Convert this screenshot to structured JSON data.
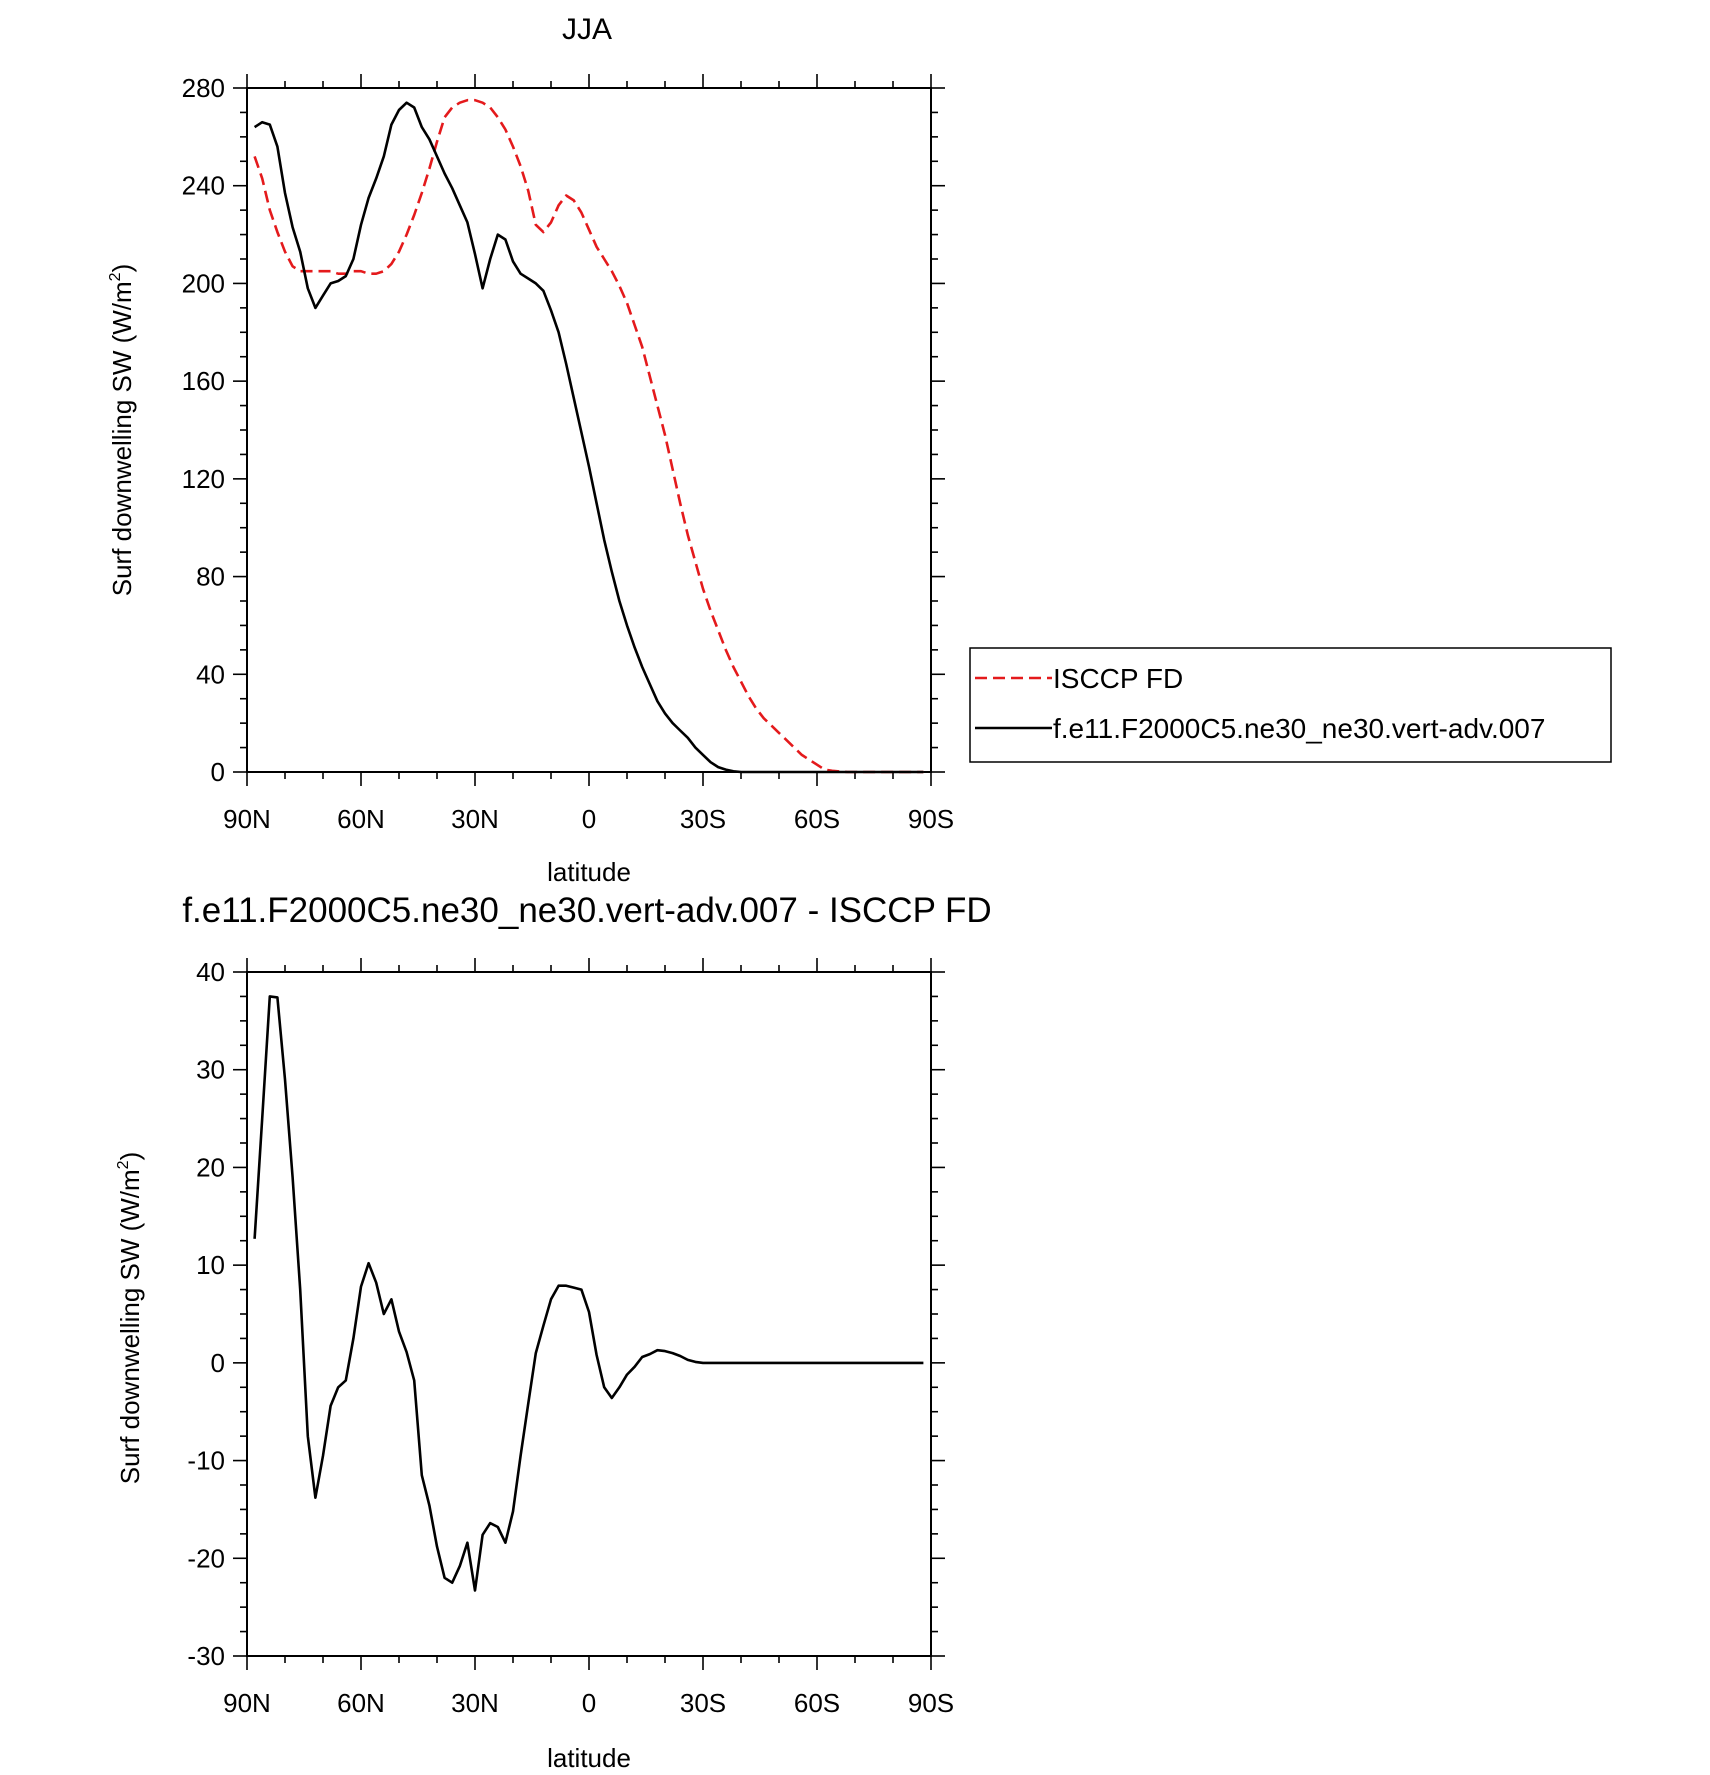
{
  "chart_data": [
    {
      "type": "line",
      "title": "JJA",
      "xlabel": "latitude",
      "ylabel": "Surf downwelling SW (W/m",
      "ylabel_sup": "2",
      "ylabel_close": ")",
      "xlim": [
        90,
        -90
      ],
      "ylim": [
        0,
        280
      ],
      "yticks": [
        0,
        40,
        80,
        120,
        160,
        200,
        240,
        280
      ],
      "xticks": [
        {
          "value": 90,
          "label": "90N"
        },
        {
          "value": 60,
          "label": "60N"
        },
        {
          "value": 30,
          "label": "30N"
        },
        {
          "value": 0,
          "label": "0"
        },
        {
          "value": -30,
          "label": "30S"
        },
        {
          "value": -60,
          "label": "60S"
        },
        {
          "value": -90,
          "label": "90S"
        }
      ],
      "legend": {
        "placement": "right",
        "entries": [
          "ISCCP FD",
          "f.e11.F2000C5.ne30_ne30.vert-adv.007"
        ]
      },
      "series": [
        {
          "name": "ISCCP FD",
          "color": "#e41a1c",
          "dash": true,
          "x": [
            88,
            86,
            84,
            82,
            80,
            78,
            76,
            74,
            72,
            70,
            68,
            66,
            64,
            62,
            60,
            58,
            56,
            54,
            52,
            50,
            48,
            46,
            44,
            42,
            40,
            38,
            36,
            34,
            32,
            30,
            28,
            26,
            24,
            22,
            20,
            18,
            16,
            14,
            12,
            10,
            8,
            6,
            4,
            2,
            0,
            -2,
            -4,
            -6,
            -8,
            -10,
            -12,
            -14,
            -16,
            -18,
            -20,
            -22,
            -24,
            -26,
            -28,
            -30,
            -32,
            -34,
            -36,
            -38,
            -40,
            -42,
            -44,
            -46,
            -48,
            -50,
            -52,
            -54,
            -56,
            -58,
            -60,
            -62,
            -64,
            -66,
            -68,
            -70,
            -72,
            -74,
            -76,
            -78,
            -80,
            -82,
            -84,
            -86,
            -88
          ],
          "y": [
            252,
            243,
            230,
            221,
            213,
            207,
            205,
            205,
            205,
            205,
            205,
            204,
            204,
            205,
            205,
            204,
            204,
            205,
            208,
            213,
            220,
            228,
            237,
            247,
            258,
            268,
            272,
            274,
            275,
            275,
            274,
            272,
            268,
            263,
            256,
            248,
            238,
            224,
            221,
            225,
            232,
            236,
            234,
            229,
            222,
            215,
            210,
            205,
            199,
            192,
            183,
            174,
            162,
            150,
            138,
            124,
            110,
            97,
            86,
            75,
            66,
            58,
            50,
            43,
            37,
            31,
            26,
            22,
            19,
            16,
            13,
            10,
            7,
            5,
            3,
            1,
            0.5,
            0.2,
            0,
            0,
            0,
            0,
            0,
            0,
            0,
            0,
            0,
            0,
            0
          ]
        },
        {
          "name": "f.e11.F2000C5.ne30_ne30.vert-adv.007",
          "color": "#000000",
          "dash": false,
          "x": [
            88,
            86,
            84,
            82,
            80,
            78,
            76,
            74,
            72,
            70,
            68,
            66,
            64,
            62,
            60,
            58,
            56,
            54,
            52,
            50,
            48,
            46,
            44,
            42,
            40,
            38,
            36,
            34,
            32,
            30,
            28,
            26,
            24,
            22,
            20,
            18,
            16,
            14,
            12,
            10,
            8,
            6,
            4,
            2,
            0,
            -2,
            -4,
            -6,
            -8,
            -10,
            -12,
            -14,
            -16,
            -18,
            -20,
            -22,
            -24,
            -26,
            -28,
            -30,
            -32,
            -34,
            -36,
            -38,
            -40,
            -42,
            -44,
            -46,
            -48,
            -50,
            -52,
            -54,
            -56,
            -58,
            -60,
            -62,
            -64,
            -66,
            -68,
            -70,
            -72,
            -74,
            -76,
            -78,
            -80,
            -82,
            -84,
            -86,
            -88
          ],
          "y": [
            264,
            266,
            265,
            256,
            237,
            223,
            213,
            198,
            190,
            195,
            200,
            201,
            203,
            210,
            224,
            235,
            243,
            252,
            265,
            271,
            274,
            272,
            264,
            259,
            252,
            245,
            239,
            232,
            225,
            212,
            198,
            210,
            220,
            218,
            209,
            204,
            202,
            200,
            197,
            189,
            180,
            167,
            153,
            139,
            125,
            110,
            95,
            82,
            70,
            60,
            51,
            43,
            36,
            29,
            24,
            20,
            17,
            14,
            10,
            7,
            4,
            2,
            1,
            0.3,
            0,
            0,
            0,
            0,
            0,
            0,
            0,
            0,
            0,
            0,
            0,
            0,
            0,
            0,
            0,
            0,
            0,
            0,
            0,
            0,
            0,
            0,
            0,
            0,
            0
          ]
        }
      ]
    },
    {
      "type": "line",
      "title": "f.e11.F2000C5.ne30_ne30.vert-adv.007 - ISCCP FD",
      "xlabel": "latitude",
      "ylabel": "Surf downwelling SW (W/m",
      "ylabel_sup": "2",
      "ylabel_close": ")",
      "xlim": [
        90,
        -90
      ],
      "ylim": [
        -30,
        40
      ],
      "yticks": [
        -30,
        -20,
        -10,
        0,
        10,
        20,
        30,
        40
      ],
      "xticks": [
        {
          "value": 90,
          "label": "90N"
        },
        {
          "value": 60,
          "label": "60N"
        },
        {
          "value": 30,
          "label": "30N"
        },
        {
          "value": 0,
          "label": "0"
        },
        {
          "value": -30,
          "label": "30S"
        },
        {
          "value": -60,
          "label": "60S"
        },
        {
          "value": -90,
          "label": "90S"
        }
      ],
      "series": [
        {
          "name": "f.e11.F2000C5.ne30_ne30.vert-adv.007 - ISCCP FD",
          "color": "#000000",
          "dash": false,
          "x": [
            88,
            86,
            84,
            82,
            80,
            78,
            76,
            74,
            72,
            70,
            68,
            66,
            64,
            62,
            60,
            58,
            56,
            54,
            52,
            50,
            48,
            46,
            44,
            42,
            40,
            38,
            36,
            34,
            32,
            30,
            28,
            26,
            24,
            22,
            20,
            18,
            16,
            14,
            12,
            10,
            8,
            6,
            4,
            2,
            0,
            -2,
            -4,
            -6,
            -8,
            -10,
            -12,
            -14,
            -16,
            -18,
            -20,
            -22,
            -24,
            -26,
            -28,
            -30,
            -32,
            -34,
            -36,
            -38,
            -40,
            -42,
            -44,
            -46,
            -48,
            -50,
            -52,
            -54,
            -56,
            -58,
            -60,
            -62,
            -64,
            -66,
            -68,
            -70,
            -72,
            -74,
            -76,
            -78,
            -80,
            -82,
            -84,
            -86,
            -88
          ],
          "y": [
            12.7,
            25,
            37.5,
            37.4,
            29,
            19,
            7.5,
            -7.5,
            -13.8,
            -9.5,
            -4.4,
            -2.5,
            -1.8,
            2.5,
            7.8,
            10.2,
            8.2,
            5,
            6.5,
            3.2,
            1.1,
            -1.8,
            -11.5,
            -14.6,
            -18.8,
            -22,
            -22.5,
            -20.8,
            -18.4,
            -23.3,
            -17.6,
            -16.4,
            -16.8,
            -18.4,
            -15.2,
            -9.5,
            -4.2,
            1,
            3.8,
            6.5,
            7.9,
            7.9,
            7.7,
            7.5,
            5.2,
            0.8,
            -2.5,
            -3.6,
            -2.5,
            -1.2,
            -0.4,
            0.6,
            0.9,
            1.3,
            1.2,
            1,
            0.7,
            0.3,
            0.1,
            0,
            0,
            0,
            0,
            0,
            0,
            0,
            0,
            0,
            0,
            0,
            0,
            0,
            0,
            0,
            0,
            0,
            0,
            0,
            0,
            0,
            0,
            0,
            0,
            0,
            0,
            0,
            0,
            0,
            0
          ]
        }
      ]
    }
  ]
}
